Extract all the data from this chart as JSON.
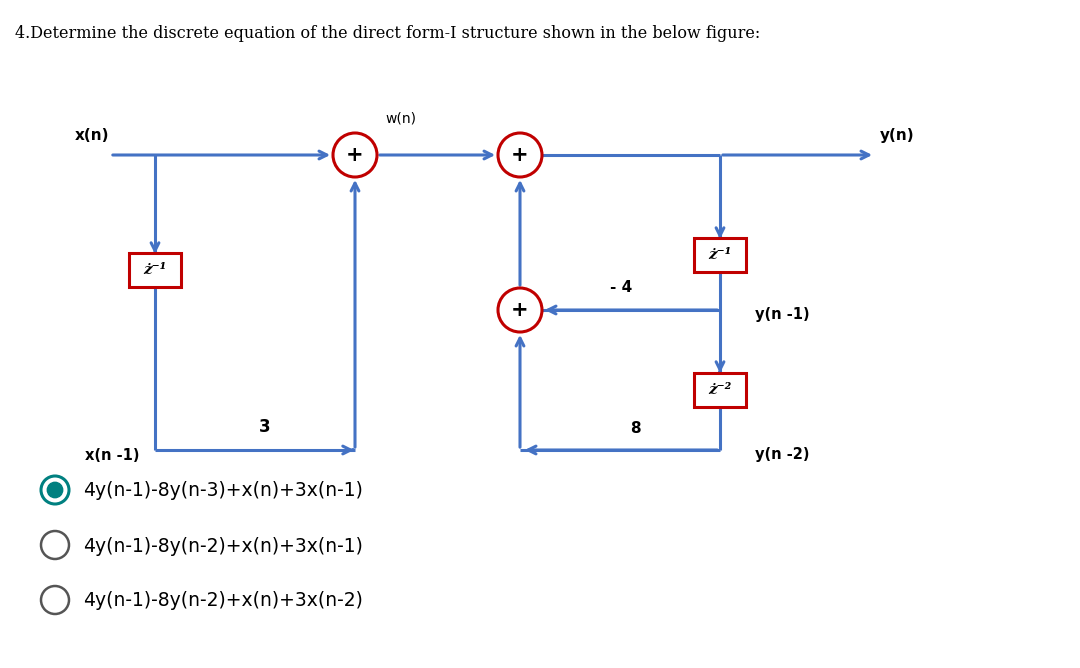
{
  "title": "4.Determine the discrete equation of the direct form-I structure shown in the below figure:",
  "background_color": "#ffffff",
  "options": [
    "4y(n-1)-8y(n-3)+x(n)+3x(n-1)",
    "4y(n-1)-8y(n-2)+x(n)+3x(n-1)",
    "4y(n-1)-8y(n-2)+x(n)+3x(n-2)"
  ],
  "selected_option": 0,
  "selected_color": "#008080",
  "line_color": "#4472c4",
  "box_border_color": "#c00000",
  "circle_border_color": "#c00000",
  "text_color": "#000000",
  "option_circle_color": "#008080"
}
